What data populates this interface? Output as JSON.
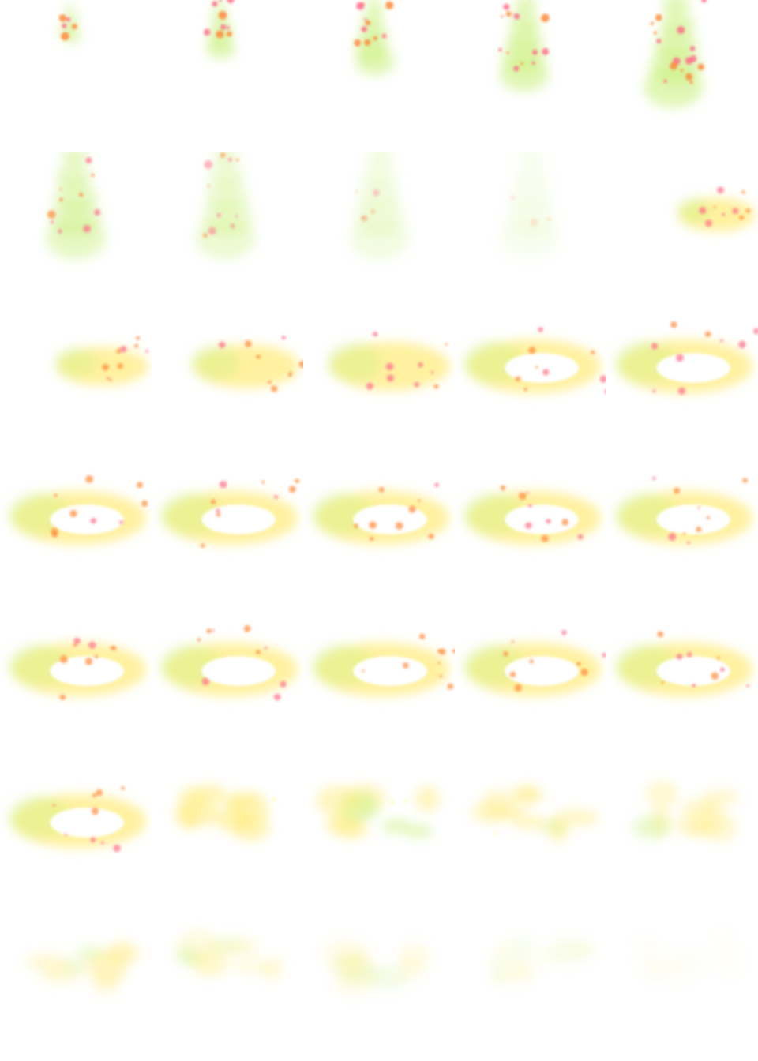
{
  "sprite_sheet": {
    "kind": "effect-animation-sprite-sheet",
    "columns": 5,
    "rows": 7,
    "frame_count": 35,
    "colors": {
      "background": "#ffffff",
      "green_glow": "#c8f07a",
      "yellow_glow": "#ffec80",
      "orange_spark": "#ff8a3c",
      "pink_spark": "#ff6f8a",
      "highlight": "#fff9b0"
    },
    "phases": [
      {
        "name": "tree-effect",
        "frames": [
          1,
          9
        ]
      },
      {
        "name": "fire-burst-effect",
        "frames": [
          10,
          26
        ]
      },
      {
        "name": "smoke-fade-effect",
        "frames": [
          27,
          35
        ]
      }
    ]
  }
}
